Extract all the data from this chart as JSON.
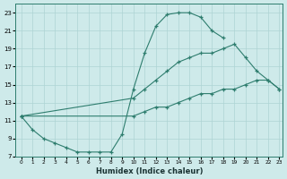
{
  "xlabel": "Humidex (Indice chaleur)",
  "line_color": "#2e7d6e",
  "bg_color": "#ceeaea",
  "grid_color": "#add4d4",
  "line1_x": [
    0,
    1,
    2,
    3,
    4,
    5,
    6,
    7,
    8,
    9,
    10,
    11,
    12,
    13,
    14,
    15,
    16,
    17,
    18
  ],
  "line1_y": [
    11.5,
    10.0,
    9.0,
    8.5,
    8.0,
    7.5,
    7.5,
    7.5,
    7.5,
    9.5,
    14.5,
    18.5,
    21.5,
    22.8,
    23.0,
    23.0,
    22.5,
    21.0,
    20.2
  ],
  "line2_x": [
    0,
    10,
    11,
    12,
    13,
    14,
    15,
    16,
    17,
    18,
    19,
    20,
    21,
    22,
    23
  ],
  "line2_y": [
    11.5,
    13.5,
    14.5,
    15.5,
    16.5,
    17.5,
    18.0,
    18.5,
    18.5,
    19.0,
    19.5,
    18.0,
    16.5,
    15.5,
    14.5
  ],
  "line3_x": [
    0,
    10,
    11,
    12,
    13,
    14,
    15,
    16,
    17,
    18,
    19,
    20,
    21,
    22,
    23
  ],
  "line3_y": [
    11.5,
    11.5,
    12.0,
    12.5,
    12.5,
    13.0,
    13.5,
    14.0,
    14.0,
    14.5,
    14.5,
    15.0,
    15.5,
    15.5,
    14.5
  ],
  "ylim": [
    7,
    24
  ],
  "xlim": [
    -0.5,
    23.3
  ],
  "yticks": [
    7,
    9,
    11,
    13,
    15,
    17,
    19,
    21,
    23
  ],
  "xticks": [
    0,
    1,
    2,
    3,
    4,
    5,
    6,
    7,
    8,
    9,
    10,
    11,
    12,
    13,
    14,
    15,
    16,
    17,
    18,
    19,
    20,
    21,
    22,
    23
  ]
}
